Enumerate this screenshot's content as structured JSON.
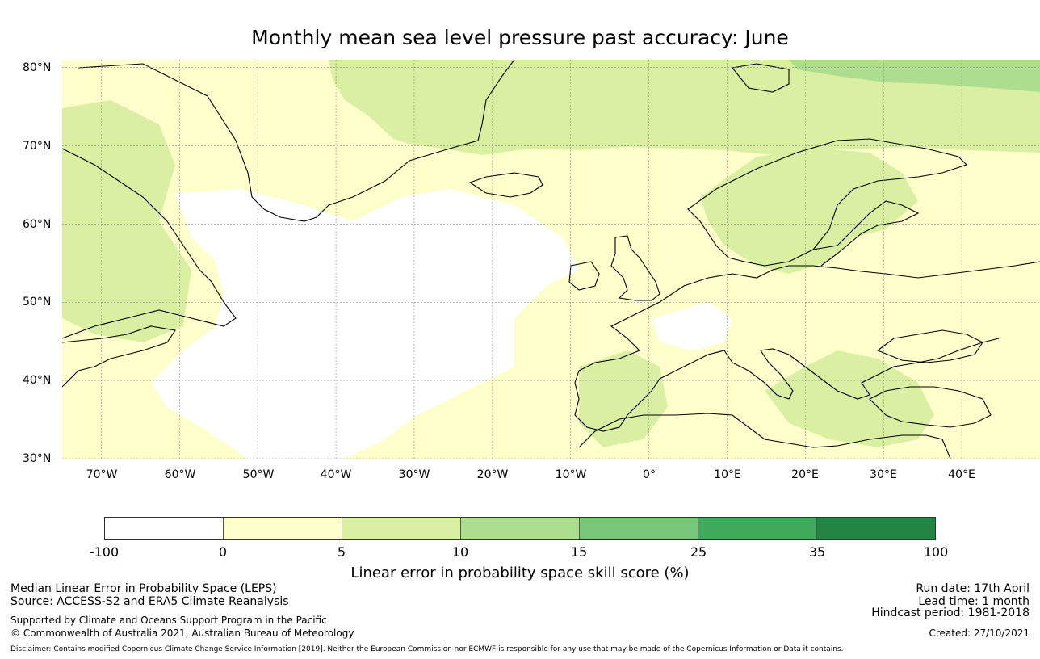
{
  "title": "Monthly mean sea level pressure past accuracy: June",
  "map": {
    "lat_labels": [
      "80°N",
      "70°N",
      "60°N",
      "50°N",
      "40°N",
      "30°N"
    ],
    "lon_labels": [
      "70°W",
      "60°W",
      "50°W",
      "40°W",
      "30°W",
      "20°W",
      "10°W",
      "0°",
      "10°E",
      "20°E",
      "30°E",
      "40°E"
    ],
    "extent": {
      "lon_min": -75,
      "lon_max": 50,
      "lat_min": 30,
      "lat_max": 81
    },
    "gridlines": true,
    "grid_color": "#888888"
  },
  "colorbar": {
    "ticks": [
      "-100",
      "0",
      "5",
      "10",
      "15",
      "25",
      "35",
      "100"
    ],
    "colors": [
      "#ffffff",
      "#ffffcc",
      "#d9f0a3",
      "#addd8e",
      "#78c679",
      "#41ab5d",
      "#238443"
    ],
    "label": "Linear error in probability space skill score (%)"
  },
  "footer": {
    "left_line1": "Median Linear Error in Probability Space (LEPS)",
    "left_line2": "Source: ACCESS-S2 and ERA5 Climate Reanalysis",
    "left_line3": "Supported by Climate and Oceans Support Program in the Pacific",
    "left_line4": "© Commonwealth of Australia 2021, Australian Bureau of Meteorology",
    "right_line1": "Run date: 17th April",
    "right_line2": "Lead time: 1 month",
    "right_line3": "Hindcast period: 1981-2018",
    "right_line4": "Created: 27/10/2021",
    "disclaimer": "Disclaimer: Contains modified Copernicus Climate Change Service Information [2019]. Neither the European Commission nor ECMWF is responsible for any use that may be made of the Copernicus Information or Data it contains."
  }
}
